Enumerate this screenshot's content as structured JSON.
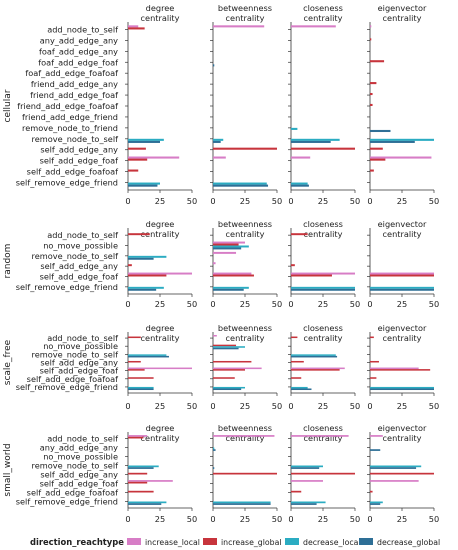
{
  "legend": {
    "title": "direction_reachtype",
    "entries": [
      {
        "name": "increase_local",
        "color": "#d77dc6"
      },
      {
        "name": "increase_global",
        "color": "#c7343c"
      },
      {
        "name": "decrease_local",
        "color": "#2bacc2"
      },
      {
        "name": "decrease_global",
        "color": "#2e6f96"
      }
    ]
  },
  "chart_data": {
    "type": "bar",
    "orientation": "horizontal",
    "x_ticks": [
      0,
      25,
      50
    ],
    "xlim": [
      0,
      50
    ],
    "columns": [
      "degree\ncentrality",
      "betweenness\ncentrality",
      "closeness\ncentrality",
      "eigenvector\ncentrality"
    ],
    "series_names": [
      "increase_local",
      "increase_global",
      "decrease_local",
      "decrease_global"
    ],
    "series_colors": [
      "#d77dc6",
      "#c7343c",
      "#2bacc2",
      "#2e6f96"
    ],
    "rows": [
      {
        "facet": "cellular",
        "categories": [
          "add_node_to_self",
          "any_add_edge_any",
          "foaf_add_edge_any",
          "foaf_add_edge_foaf",
          "foaf_add_edge_foafoaf",
          "friend_add_edge_any",
          "friend_add_edge_foaf",
          "friend_add_edge_foafoaf",
          "friend_add_edge_friend",
          "remove_node_to_friend",
          "remove_node_to_self",
          "self_add_edge_any",
          "self_add_edge_foaf",
          "self_add_edge_foafoaf",
          "self_remove_edge_friend"
        ],
        "values": {
          "degree\ncentrality": [
            [
              8,
              13,
              0,
              0
            ],
            [
              0,
              0,
              0,
              0
            ],
            [
              0,
              0,
              0,
              0
            ],
            [
              0,
              0,
              0,
              0
            ],
            [
              0,
              0,
              0,
              0
            ],
            [
              0,
              0,
              0,
              0
            ],
            [
              0,
              0,
              0,
              0
            ],
            [
              0,
              0,
              0,
              0
            ],
            [
              0,
              0,
              0,
              0
            ],
            [
              0,
              0,
              0,
              0
            ],
            [
              0,
              0,
              28,
              25
            ],
            [
              0,
              14,
              0,
              0
            ],
            [
              40,
              15,
              0,
              0
            ],
            [
              0,
              8,
              0,
              0
            ],
            [
              0,
              0,
              25,
              23
            ]
          ],
          "betweenness\ncentrality": [
            [
              40,
              0,
              0,
              0
            ],
            [
              0,
              0,
              0,
              0
            ],
            [
              0,
              0,
              0,
              0
            ],
            [
              0,
              0,
              0,
              1
            ],
            [
              0,
              0,
              0,
              0
            ],
            [
              0,
              0,
              0,
              0
            ],
            [
              0,
              0,
              0,
              0
            ],
            [
              0,
              0,
              0,
              0
            ],
            [
              0,
              0,
              0,
              0
            ],
            [
              0,
              0,
              0,
              0
            ],
            [
              0,
              0,
              8,
              6
            ],
            [
              0,
              50,
              0,
              0
            ],
            [
              10,
              0,
              0,
              0
            ],
            [
              0,
              0,
              0,
              0
            ],
            [
              0,
              0,
              42,
              43
            ]
          ],
          "closeness\ncentrality": [
            [
              35,
              0,
              0,
              0
            ],
            [
              0,
              0,
              0,
              0
            ],
            [
              0,
              0,
              0,
              0
            ],
            [
              0,
              0,
              0,
              0
            ],
            [
              0,
              0,
              0,
              0
            ],
            [
              0,
              0,
              0,
              0
            ],
            [
              0,
              0,
              0,
              0
            ],
            [
              0,
              0,
              0,
              0
            ],
            [
              0,
              0,
              0,
              0
            ],
            [
              0,
              0,
              5,
              0
            ],
            [
              0,
              0,
              38,
              31
            ],
            [
              0,
              50,
              0,
              0
            ],
            [
              15,
              0,
              0,
              0
            ],
            [
              0,
              0,
              0,
              0
            ],
            [
              0,
              0,
              13,
              14
            ]
          ],
          "eigenvector\ncentrality": [
            [
              1,
              0,
              0,
              0
            ],
            [
              0,
              1,
              0,
              0
            ],
            [
              0,
              0,
              0,
              0
            ],
            [
              0,
              11,
              0,
              0
            ],
            [
              0,
              0,
              0,
              0
            ],
            [
              0,
              5,
              0,
              0
            ],
            [
              0,
              2,
              0,
              0
            ],
            [
              0,
              2,
              0,
              0
            ],
            [
              0,
              0,
              0,
              0
            ],
            [
              0,
              0,
              0,
              16
            ],
            [
              0,
              0,
              50,
              35
            ],
            [
              0,
              10,
              0,
              0
            ],
            [
              48,
              12,
              0,
              0
            ],
            [
              0,
              3,
              0,
              0
            ],
            [
              0,
              0,
              0,
              0
            ]
          ]
        }
      },
      {
        "facet": "random",
        "categories": [
          "add_node_to_self",
          "no_move_possible",
          "remove_node_to_self",
          "self_add_edge_any",
          "self_add_edge_foaf",
          "self_remove_edge_friend"
        ],
        "values": {
          "degree\ncentrality": [
            [
              0,
              17,
              0,
              0
            ],
            [
              0,
              0,
              0,
              0
            ],
            [
              0,
              0,
              30,
              20
            ],
            [
              0,
              3,
              0,
              0
            ],
            [
              50,
              30,
              0,
              0
            ],
            [
              0,
              0,
              28,
              22
            ]
          ],
          "betweenness\ncentrality": [
            [
              0,
              0,
              0,
              0
            ],
            [
              25,
              20,
              28,
              22
            ],
            [
              18,
              0,
              0,
              0
            ],
            [
              2,
              0,
              0,
              0
            ],
            [
              30,
              32,
              0,
              0
            ],
            [
              0,
              0,
              28,
              24
            ]
          ],
          "closeness\ncentrality": [
            [
              0,
              13,
              0,
              0
            ],
            [
              0,
              0,
              0,
              0
            ],
            [
              0,
              0,
              0,
              0
            ],
            [
              0,
              3,
              0,
              0
            ],
            [
              50,
              32,
              0,
              0
            ],
            [
              0,
              0,
              50,
              50
            ]
          ],
          "eigenvector\ncentrality": [
            [
              0,
              0,
              0,
              0
            ],
            [
              0,
              0,
              0,
              0
            ],
            [
              0,
              0,
              0,
              0
            ],
            [
              0,
              0,
              0,
              0
            ],
            [
              50,
              50,
              0,
              0
            ],
            [
              0,
              0,
              50,
              50
            ]
          ]
        }
      },
      {
        "facet": "scale_free",
        "categories": [
          "add_node_to_self",
          "no_move_possible",
          "remove_node_to_self",
          "self_add_edge_any",
          "self_add_edge_foaf",
          "self_add_edge_foafoaf",
          "self_remove_edge_friend"
        ],
        "values": {
          "degree\ncentrality": [
            [
              0,
              10,
              0,
              0
            ],
            [
              0,
              0,
              0,
              0
            ],
            [
              0,
              0,
              30,
              32
            ],
            [
              0,
              10,
              0,
              0
            ],
            [
              50,
              13,
              0,
              0
            ],
            [
              0,
              20,
              0,
              0
            ],
            [
              0,
              0,
              20,
              20
            ]
          ],
          "betweenness\ncentrality": [
            [
              3,
              0,
              0,
              0
            ],
            [
              0,
              18,
              25,
              20
            ],
            [
              0,
              0,
              0,
              0
            ],
            [
              0,
              30,
              0,
              0
            ],
            [
              38,
              25,
              0,
              0
            ],
            [
              0,
              17,
              0,
              0
            ],
            [
              0,
              0,
              25,
              22
            ]
          ],
          "closeness\ncentrality": [
            [
              0,
              5,
              0,
              0
            ],
            [
              0,
              0,
              0,
              0
            ],
            [
              0,
              0,
              35,
              36
            ],
            [
              0,
              10,
              0,
              0
            ],
            [
              42,
              38,
              0,
              0
            ],
            [
              0,
              8,
              0,
              0
            ],
            [
              0,
              0,
              13,
              16
            ]
          ],
          "eigenvector\ncentrality": [
            [
              0,
              3,
              0,
              0
            ],
            [
              0,
              0,
              0,
              0
            ],
            [
              0,
              0,
              0,
              0
            ],
            [
              0,
              7,
              0,
              0
            ],
            [
              38,
              47,
              0,
              0
            ],
            [
              0,
              5,
              0,
              0
            ],
            [
              0,
              0,
              50,
              50
            ]
          ]
        }
      },
      {
        "facet": "small_world",
        "categories": [
          "add_node_to_self",
          "any_add_edge_any",
          "no_move_possible",
          "remove_node_to_self",
          "self_add_edge_any",
          "self_add_edge_foaf",
          "self_add_edge_foafoaf",
          "self_remove_edge_friend"
        ],
        "values": {
          "degree\ncentrality": [
            [
              15,
              12,
              0,
              0
            ],
            [
              0,
              0,
              0,
              0
            ],
            [
              0,
              0,
              0,
              0
            ],
            [
              0,
              0,
              24,
              20
            ],
            [
              0,
              15,
              0,
              0
            ],
            [
              35,
              15,
              0,
              0
            ],
            [
              0,
              20,
              0,
              0
            ],
            [
              0,
              0,
              30,
              26
            ]
          ],
          "betweenness\ncentrality": [
            [
              48,
              0,
              0,
              0
            ],
            [
              0,
              0,
              1,
              2
            ],
            [
              0,
              0,
              0,
              0
            ],
            [
              0,
              0,
              0,
              1
            ],
            [
              0,
              50,
              0,
              0
            ],
            [
              0,
              0,
              0,
              0
            ],
            [
              0,
              0,
              0,
              0
            ],
            [
              0,
              0,
              45,
              45
            ]
          ],
          "closeness\ncentrality": [
            [
              45,
              0,
              0,
              0
            ],
            [
              0,
              0,
              0,
              0
            ],
            [
              0,
              0,
              0,
              0
            ],
            [
              0,
              0,
              25,
              22
            ],
            [
              0,
              50,
              0,
              0
            ],
            [
              25,
              0,
              0,
              0
            ],
            [
              0,
              8,
              0,
              0
            ],
            [
              0,
              0,
              27,
              20
            ]
          ],
          "eigenvector\ncentrality": [
            [
              10,
              0,
              0,
              0
            ],
            [
              0,
              0,
              0,
              8
            ],
            [
              0,
              0,
              0,
              0
            ],
            [
              0,
              0,
              40,
              36
            ],
            [
              0,
              50,
              0,
              0
            ],
            [
              38,
              0,
              0,
              0
            ],
            [
              0,
              2,
              0,
              0
            ],
            [
              0,
              0,
              10,
              8
            ]
          ]
        }
      }
    ]
  }
}
